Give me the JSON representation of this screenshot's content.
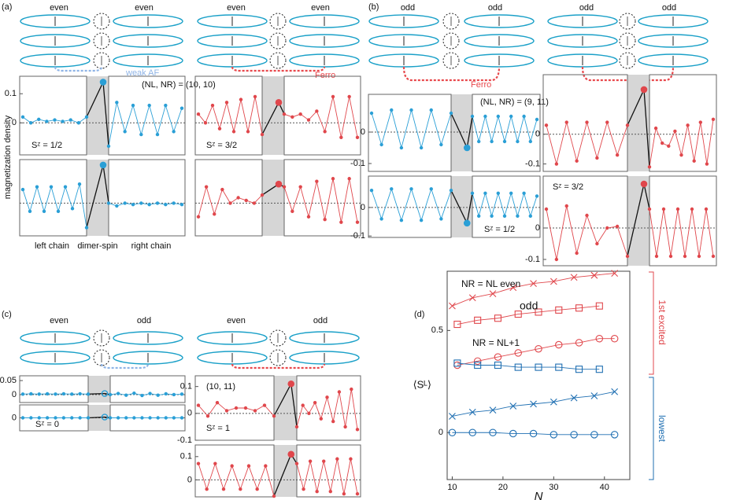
{
  "panel_labels": [
    "(a)",
    "(b)",
    "(c)",
    "(d)"
  ],
  "labels": {
    "y_axis": "magnetization density",
    "left": "left chain",
    "middle": "dimer-spin",
    "right": "right chain"
  },
  "diagrams": [
    {
      "labels": [
        "even",
        "even"
      ],
      "note": "weak AF",
      "color": "#8fb4e6"
    },
    {
      "labels": [
        "even",
        "even"
      ],
      "note": "Ferro",
      "color": "#e8484c"
    },
    {
      "labels": [
        "odd",
        "odd"
      ],
      "note": "Ferro",
      "color": "#e8484c"
    },
    {
      "labels": [
        "odd",
        "odd"
      ],
      "color": "#e8484c"
    },
    {
      "labels": [
        "even",
        "odd"
      ],
      "color": "#8fb4e6"
    },
    {
      "labels": [
        "even",
        "odd"
      ],
      "color": "#e8484c"
    }
  ],
  "chart_data": [
    {
      "type": "line",
      "color": "#2a9fd6",
      "ylim": [
        -0.11,
        0.16
      ],
      "yticks": [
        0.1,
        0
      ],
      "annotations": [
        "Sᶻ = 1/2",
        "(NL, NR) = (10, 10)"
      ],
      "left_chain": [
        0.02,
        0.0,
        0.012,
        0.005,
        0.01,
        0.005,
        0.01,
        0.0,
        0.02
      ],
      "dimer": 0.14,
      "right_chain": [
        -0.08,
        0.07,
        -0.03,
        0.06,
        -0.04,
        0.06,
        -0.04,
        0.06,
        -0.03,
        0.05
      ]
    },
    {
      "type": "line",
      "color": "#2a9fd6",
      "ylim": [
        -0.12,
        0.16
      ],
      "left_chain": [
        0.05,
        -0.03,
        0.06,
        -0.03,
        0.06,
        -0.03,
        0.06,
        -0.02,
        0.07,
        -0.09
      ],
      "dimer": 0.14,
      "right_chain": [
        0.0,
        -0.01,
        0.0,
        -0.005,
        0.0,
        -0.005,
        0.0,
        -0.005,
        0.0,
        -0.005
      ]
    },
    {
      "type": "line",
      "color": "#e0474c",
      "ylim": [
        -0.11,
        0.16
      ],
      "annotations": [
        "Sᶻ = 3/2"
      ],
      "left_chain": [
        0.03,
        0.0,
        0.06,
        -0.02,
        0.07,
        -0.03,
        0.08,
        -0.03,
        0.09,
        -0.04
      ],
      "dimer": 0.07,
      "right_chain": [
        0.03,
        0.02,
        0.03,
        0.01,
        0.04,
        -0.03,
        0.09,
        -0.05,
        0.09,
        -0.05
      ]
    },
    {
      "type": "line",
      "color": "#e0474c",
      "ylim": [
        -0.12,
        0.16
      ],
      "left_chain": [
        -0.05,
        0.06,
        -0.04,
        0.05,
        0.0,
        0.02,
        0.01,
        0.0,
        0.03
      ],
      "dimer": 0.07,
      "right_chain": [
        0.06,
        -0.03,
        0.06,
        -0.05,
        0.08,
        -0.06,
        0.09,
        -0.07,
        0.09,
        -0.07
      ]
    },
    {
      "type": "line",
      "color": "#2a9fd6",
      "ylim": [
        -0.125,
        0.12
      ],
      "yticks": [
        0,
        -0.1
      ],
      "annotations": [
        "(NL, NR) = (9, 11)"
      ],
      "left_chain": [
        0.06,
        -0.04,
        0.07,
        -0.05,
        0.07,
        -0.05,
        0.07,
        -0.04,
        0.06
      ],
      "dimer": -0.05,
      "right_chain": [
        0.05,
        -0.03,
        0.05,
        -0.03,
        0.05,
        -0.03,
        0.05,
        -0.03,
        0.05,
        -0.03,
        0.04
      ]
    },
    {
      "type": "line",
      "color": "#2a9fd6",
      "ylim": [
        -0.105,
        0.11
      ],
      "yticks": [
        0,
        -0.1
      ],
      "annotations": [
        "Sᶻ = 1/2"
      ],
      "left_chain": [
        0.06,
        -0.04,
        0.065,
        -0.045,
        0.065,
        -0.045,
        0.065,
        -0.04,
        0.06
      ],
      "dimer": -0.055,
      "right_chain": [
        0.05,
        -0.03,
        0.05,
        -0.03,
        0.05,
        -0.03,
        0.05,
        -0.03,
        0.05,
        -0.03,
        0.04
      ]
    },
    {
      "type": "line",
      "color": "#e0474c",
      "ylim": [
        -0.125,
        0.2
      ],
      "yticks": [
        0,
        -0.1
      ],
      "left_chain": [
        0.03,
        -0.1,
        0.04,
        -0.09,
        0.04,
        -0.08,
        0.04,
        -0.07,
        0.03
      ],
      "dimer": 0.15,
      "right_chain": [
        -0.11,
        0.02,
        -0.03,
        -0.04,
        0.01,
        -0.07,
        0.03,
        -0.09,
        0.04,
        -0.1,
        0.05
      ]
    },
    {
      "type": "line",
      "color": "#e0474c",
      "ylim": [
        -0.12,
        0.165
      ],
      "yticks": [
        0,
        -0.1
      ],
      "annotations": [
        "Sᶻ = 3/2"
      ],
      "left_chain": [
        0.06,
        -0.1,
        0.07,
        -0.08,
        0.04,
        -0.05,
        0.0,
        0.005,
        -0.09
      ],
      "dimer": 0.14,
      "right_chain": [
        0.06,
        -0.09,
        0.06,
        -0.09,
        0.06,
        -0.09,
        0.06,
        -0.09,
        0.06,
        -0.09
      ]
    },
    {
      "type": "line",
      "color": "#2a9fd6",
      "dimer_marker": "hollow",
      "ylim": [
        -0.028,
        0.067
      ],
      "yticks": [
        0.05,
        0
      ],
      "left_chain": [
        0.002,
        0.003,
        0.002,
        0.003,
        0.002,
        0.003,
        0.002,
        0.003,
        0.002
      ],
      "dimer": 0.004,
      "right_chain": [
        0.0,
        0.004,
        -0.002,
        0.005,
        -0.003,
        0.004,
        -0.002,
        0.003,
        0.0,
        0.002
      ]
    },
    {
      "type": "line",
      "color": "#2a9fd6",
      "dimer_marker": "hollow",
      "ylim": [
        -0.05,
        0.05
      ],
      "yticks": [
        0
      ],
      "annotations": [
        "Sᶻ = 0"
      ],
      "left_chain": [
        0.0,
        0.0,
        0.0,
        0.0,
        0.0,
        0.0,
        0.0,
        0.0,
        0.0
      ],
      "dimer": 0.003,
      "right_chain": [
        0.0,
        0.0,
        0.0,
        0.0,
        0.0,
        0.0,
        0.0,
        0.0,
        0.0,
        0.0
      ]
    },
    {
      "type": "line",
      "color": "#e0474c",
      "ylim": [
        -0.1,
        0.14
      ],
      "yticks": [
        0.1,
        0,
        -0.1
      ],
      "annotations": [
        "(10, 11)",
        "Sᶻ = 1"
      ],
      "left_chain": [
        0.03,
        -0.01,
        0.04,
        0.01,
        0.02,
        0.02,
        0.01,
        0.03,
        -0.01
      ],
      "dimer": 0.11,
      "right_chain": [
        -0.05,
        0.03,
        0.0,
        0.04,
        -0.02,
        0.06,
        -0.03,
        0.08,
        -0.05,
        0.09,
        -0.06
      ]
    },
    {
      "type": "line",
      "color": "#e0474c",
      "ylim": [
        -0.073,
        0.15
      ],
      "yticks": [
        0.1,
        0
      ],
      "left_chain": [
        0.07,
        -0.04,
        0.07,
        -0.04,
        0.06,
        -0.04,
        0.06,
        -0.04,
        0.06,
        -0.07
      ],
      "dimer": 0.11,
      "right_chain": [
        0.07,
        -0.04,
        0.08,
        -0.05,
        0.08,
        -0.05,
        0.09,
        -0.06,
        0.09,
        -0.06
      ]
    },
    {
      "type": "scatter",
      "xlabel": "N",
      "ylabel": "⟨Sᴸ⟩",
      "xlim": [
        9,
        45
      ],
      "ylim": [
        -0.23,
        0.79
      ],
      "xticks": [
        10,
        20,
        30,
        40
      ],
      "yticks": [
        0,
        0.5
      ],
      "annotations": [
        "NR = NL  even",
        "odd",
        "NR = NL+1",
        "1st excited",
        "lowest"
      ],
      "series": [
        {
          "marker": "cross",
          "color": "#e0474c",
          "x": [
            10,
            14,
            18,
            22,
            26,
            30,
            34,
            38,
            42
          ],
          "values": [
            0.62,
            0.66,
            0.68,
            0.71,
            0.73,
            0.74,
            0.76,
            0.77,
            0.78
          ]
        },
        {
          "marker": "square",
          "color": "#e0474c",
          "x": [
            11,
            15,
            19,
            23,
            27,
            31,
            35,
            39
          ],
          "values": [
            0.53,
            0.55,
            0.56,
            0.58,
            0.59,
            0.6,
            0.61,
            0.62
          ]
        },
        {
          "marker": "circle",
          "color": "#e0474c",
          "x": [
            11,
            15,
            19,
            23,
            27,
            31,
            35,
            39,
            42
          ],
          "values": [
            0.33,
            0.35,
            0.37,
            0.39,
            0.41,
            0.43,
            0.44,
            0.46,
            0.46
          ]
        },
        {
          "marker": "square",
          "color": "#1f6fb2",
          "x": [
            11,
            15,
            19,
            23,
            27,
            31,
            35,
            39
          ],
          "values": [
            0.34,
            0.33,
            0.33,
            0.32,
            0.32,
            0.32,
            0.31,
            0.31
          ]
        },
        {
          "marker": "cross",
          "color": "#1f6fb2",
          "x": [
            10,
            14,
            18,
            22,
            26,
            30,
            34,
            38,
            42
          ],
          "values": [
            0.08,
            0.1,
            0.11,
            0.13,
            0.14,
            0.15,
            0.17,
            0.18,
            0.2
          ]
        },
        {
          "marker": "circle",
          "color": "#1f6fb2",
          "x": [
            10,
            14,
            18,
            22,
            26,
            30,
            34,
            38,
            42
          ],
          "values": [
            0.0,
            0.0,
            0.0,
            -0.005,
            -0.005,
            -0.01,
            -0.01,
            -0.01,
            -0.01
          ]
        }
      ]
    }
  ]
}
